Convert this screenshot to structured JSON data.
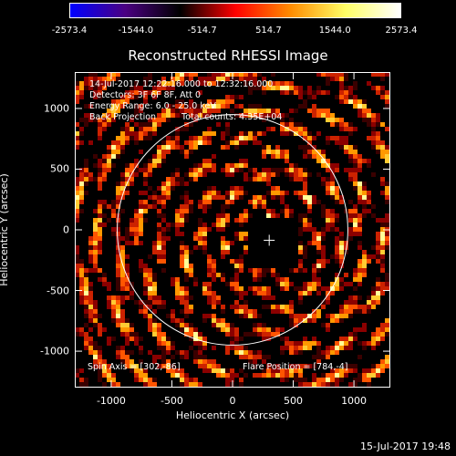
{
  "colorbar": {
    "ticks": [
      "-2573.4",
      "-1544.0",
      "-514.7",
      "514.7",
      "1544.0",
      "2573.4"
    ],
    "tick_values": [
      -2573.4,
      -1544.0,
      -514.7,
      514.7,
      1544.0,
      2573.4
    ],
    "min": -2573.4,
    "max": 2573.4,
    "colors": [
      "#0000ff",
      "#4b0082",
      "#000000",
      "#ff0000",
      "#ff8c00",
      "#ffff66",
      "#ffffff"
    ]
  },
  "title": "Reconstructed RHESSI Image",
  "annotations": {
    "time_range": "14-Jul-2017 12:22:16.000 to 12:32:16.000",
    "detectors": "Detectors: 3F 6F 8F, Att 0",
    "energy": "Energy Range: 6.0 - 25.0 keV",
    "method": "Back Projection",
    "counts": "Total counts: 4.35E+04",
    "spin_axis": "Spin Axis = [302,-86]",
    "flare_position": "Flare Position = [784,-4]"
  },
  "axes": {
    "xlabel": "Heliocentric X (arcsec)",
    "ylabel": "Heliocentric Y (arcsec)",
    "x_range": [
      -1300,
      1300
    ],
    "y_range": [
      -1300,
      1300
    ],
    "x_ticks": [
      "-1000",
      "-500",
      "0",
      "500",
      "1000"
    ],
    "x_tick_values": [
      -1000,
      -500,
      0,
      500,
      1000
    ],
    "y_ticks": [
      "1000",
      "500",
      "0",
      "-500",
      "-1000"
    ],
    "y_tick_values": [
      1000,
      500,
      0,
      -500,
      -1000
    ]
  },
  "solar_limb_radius": 950,
  "crosshair": [
    302,
    -86
  ],
  "footer": "15-Jul-2017 19:48"
}
